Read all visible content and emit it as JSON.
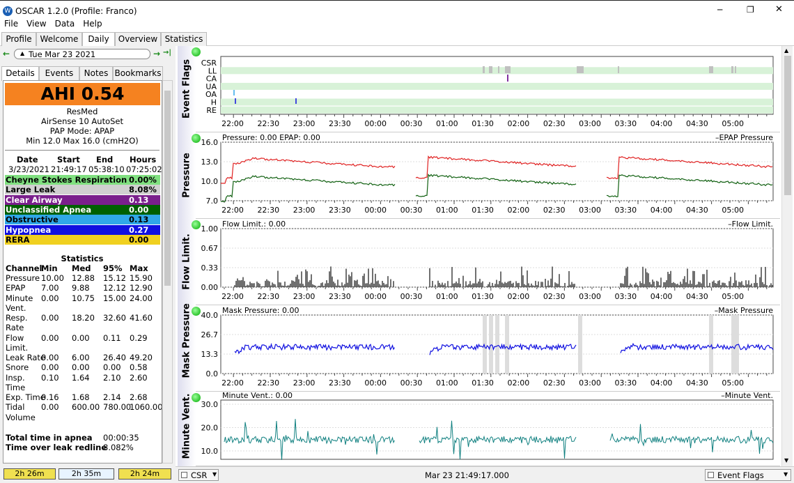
{
  "window": {
    "title": "OSCAR 1.2.0 (Profile: Franco)",
    "minimize": "─",
    "maximize": "❐",
    "close": "✕"
  },
  "menu": [
    "File",
    "View",
    "Data",
    "Help"
  ],
  "tabs": [
    "Profile",
    "Welcome",
    "Daily",
    "Overview",
    "Statistics"
  ],
  "date": {
    "prev": "←",
    "next": "→",
    "value": "Tue Mar 23 2021",
    "last": "→|"
  },
  "subtabs": [
    "Details",
    "Events",
    "Notes",
    "Bookmarks"
  ],
  "ahi": "AHI 0.54",
  "machine": {
    "brand": "ResMed",
    "model": "AirSense 10 AutoSet",
    "mode": "PAP Mode: APAP",
    "pressure": "Min 12.0 Max 16.0 (cmH2O)"
  },
  "session": {
    "headers": [
      "Date",
      "Start",
      "End",
      "Hours"
    ],
    "values": [
      "3/23/2021",
      "21:49:17",
      "05:38:10",
      "07:25:02"
    ]
  },
  "indices": [
    {
      "label": "Cheyne Stokes Respiration",
      "value": "0.00%",
      "color": "#80e080",
      "text": "#000"
    },
    {
      "label": "Large Leak",
      "value": "8.08%",
      "color": "#d0d0d0",
      "text": "#000"
    },
    {
      "label": "Clear Airway",
      "value": "0.13",
      "color": "#7a1f8c",
      "text": "#fff"
    },
    {
      "label": "Unclassified Apnea",
      "value": "0.00",
      "color": "#006000",
      "text": "#fff"
    },
    {
      "label": "Obstructive",
      "value": "0.13",
      "color": "#30a8e8",
      "text": "#000"
    },
    {
      "label": "Hypopnea",
      "value": "0.27",
      "color": "#1010e0",
      "text": "#fff"
    },
    {
      "label": "RERA",
      "value": "0.00",
      "color": "#f0d020",
      "text": "#000"
    }
  ],
  "stats": {
    "title": "Statistics",
    "headers": [
      "Channel",
      "Min",
      "Med",
      "95%",
      "Max"
    ],
    "rows": [
      [
        "Pressure",
        "10.00",
        "12.88",
        "15.12",
        "15.90"
      ],
      [
        "EPAP",
        "7.00",
        "9.88",
        "12.12",
        "12.90"
      ],
      [
        "Minute",
        "0.00",
        "10.75",
        "15.00",
        "24.00"
      ],
      [
        "Vent.",
        "",
        "",
        "",
        ""
      ],
      [
        "Resp.",
        "0.00",
        "18.20",
        "32.60",
        "41.60"
      ],
      [
        "Rate",
        "",
        "",
        "",
        ""
      ],
      [
        "Flow",
        "0.00",
        "0.00",
        "0.11",
        "0.29"
      ],
      [
        "Limit.",
        "",
        "",
        "",
        ""
      ],
      [
        "Leak Rate",
        "0.00",
        "6.00",
        "26.40",
        "49.20"
      ],
      [
        "Snore",
        "0.00",
        "0.00",
        "0.00",
        "0.58"
      ],
      [
        "Insp.",
        "0.10",
        "1.64",
        "2.10",
        "2.60"
      ],
      [
        "Time",
        "",
        "",
        "",
        ""
      ],
      [
        "Exp. Time",
        "0.16",
        "1.68",
        "2.14",
        "2.68"
      ],
      [
        "Tidal",
        "0.00",
        "600.00",
        "780.00",
        "1060.00"
      ],
      [
        "Volume",
        "",
        "",
        "",
        ""
      ]
    ]
  },
  "totals": [
    {
      "label": "Total time in apnea",
      "value": "00:00:35"
    },
    {
      "label": "Time over leak redline",
      "value": "8.082%"
    }
  ],
  "bottom_buttons": [
    "2h 26m",
    "2h 35m",
    "2h 24m"
  ],
  "status": {
    "channel": "CSR",
    "time": "Mar 23 21:49:17.000",
    "graph": "Event Flags"
  },
  "time_ticks": [
    "22:00",
    "22:30",
    "23:00",
    "23:30",
    "00:00",
    "00:30",
    "01:00",
    "01:30",
    "02:00",
    "02:30",
    "03:00",
    "03:30",
    "04:00",
    "04:30",
    "05:00"
  ],
  "graphs": [
    {
      "title": "Event Flags",
      "flags": [
        "CSR",
        "LL",
        "CA",
        "UA",
        "OA",
        "H",
        "RE"
      ]
    },
    {
      "title": "Pressure",
      "header": "Pressure: 0.00 EPAP: 0.00",
      "legend": "EPAP  Pressure",
      "yticks": [
        "16.0",
        "13.0",
        "10.0",
        "7.0"
      ]
    },
    {
      "title": "Flow Limit.",
      "header": "Flow Limit.: 0.00",
      "legend": "Flow Limit.",
      "yticks": [
        "1.00",
        "0.67",
        "0.33",
        "0.00"
      ]
    },
    {
      "title": "Mask Pressure",
      "header": "Mask Pressure: 0.00",
      "legend": "Mask Pressure",
      "yticks": [
        "40.0",
        "26.7",
        "13.3",
        "0.0"
      ]
    },
    {
      "title": "Minute Vent.",
      "header": "Minute Vent.: 0.00",
      "legend": "Minute Vent.",
      "yticks": [
        "30.0",
        "20.0",
        "10.0"
      ]
    }
  ],
  "colors": {
    "pressure": "#e02020",
    "epap": "#106010",
    "flow": "#404040",
    "mask": "#1010e0",
    "minvent": "#108080"
  }
}
